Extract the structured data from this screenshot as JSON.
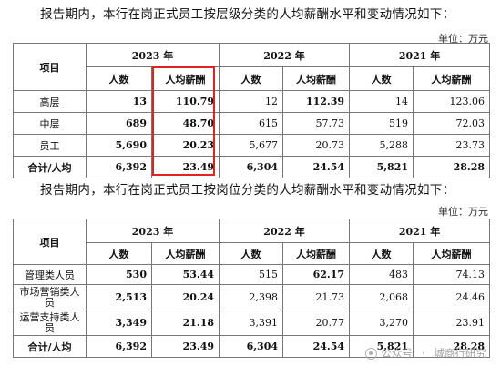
{
  "tables": [
    {
      "intro": "报告期内，本行在岗正式员工按层级分类的人均薪酬水平和变动情况如下：",
      "unit": "单位：万元",
      "header": {
        "item": "项目",
        "years": [
          "2023 年",
          "2022 年",
          "2021 年"
        ],
        "count": "人数",
        "avg": "人均薪酬"
      },
      "rows": [
        {
          "label": "高层",
          "values": [
            "13",
            "110.79",
            "12",
            "112.39",
            "14",
            "123.06"
          ]
        },
        {
          "label": "中层",
          "values": [
            "689",
            "48.70",
            "615",
            "57.73",
            "519",
            "72.03"
          ]
        },
        {
          "label": "员工",
          "values": [
            "5,690",
            "20.23",
            "5,677",
            "20.73",
            "5,288",
            "23.73"
          ]
        },
        {
          "label": "合计/人均",
          "values": [
            "6,392",
            "23.49",
            "6,304",
            "24.54",
            "5,821",
            "28.28"
          ]
        }
      ]
    },
    {
      "intro": "报告期内，本行在岗正式员工按岗位分类的人均薪酬水平和变动情况如下：",
      "unit": "单位：万元",
      "header": {
        "item": "项目",
        "years": [
          "2023 年",
          "2022 年",
          "2021 年"
        ],
        "count": "人数",
        "avg": "人均薪酬"
      },
      "rows": [
        {
          "label": "管理类人员",
          "values": [
            "530",
            "53.44",
            "515",
            "62.17",
            "483",
            "74.13"
          ]
        },
        {
          "label": "市场营销类人员",
          "values": [
            "2,513",
            "20.24",
            "2,398",
            "21.73",
            "2,068",
            "24.46"
          ]
        },
        {
          "label": "运营支持类人员",
          "values": [
            "3,349",
            "21.18",
            "3,391",
            "20.77",
            "3,270",
            "23.91"
          ]
        },
        {
          "label": "合计/人均",
          "values": [
            "6,392",
            "23.49",
            "6,304",
            "24.54",
            "5,821",
            "28.28"
          ]
        }
      ]
    }
  ],
  "watermark": {
    "account": "公众号",
    "name": "城商行研究"
  },
  "colors": {
    "highlight_box": "#e0231d",
    "border": "#777777"
  }
}
